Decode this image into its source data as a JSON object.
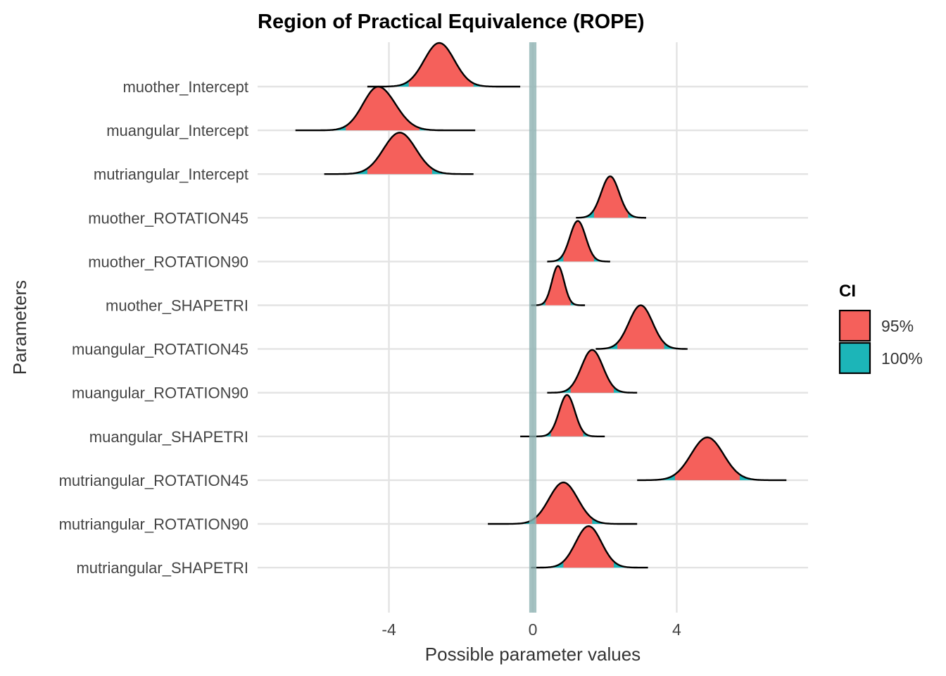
{
  "chart_data": {
    "type": "area",
    "title": "Region of Practical Equivalence (ROPE)",
    "xlabel": "Possible parameter values",
    "ylabel": "Parameters",
    "xlim": [
      -7.65,
      7.65
    ],
    "x_ticks": [
      {
        "value": -4,
        "label": "-4"
      },
      {
        "value": 0,
        "label": "0"
      },
      {
        "value": 4,
        "label": "4"
      }
    ],
    "rope": {
      "low": -0.1,
      "high": 0.1,
      "color": "#8fb3b3"
    },
    "legend": {
      "title": "CI",
      "position": "right",
      "entries": [
        {
          "label": "95%",
          "color": "#f5605b"
        },
        {
          "label": "100%",
          "color": "#1cb5b8"
        }
      ]
    },
    "grid": true,
    "parameters": [
      {
        "name": "muother_Intercept",
        "mode": -2.6,
        "sd_left": 0.42,
        "sd_right": 0.42,
        "range": [
          -4.6,
          -0.35
        ],
        "ci95": [
          -3.45,
          -1.65
        ],
        "peak": 1.0
      },
      {
        "name": "muangular_Intercept",
        "mode": -4.3,
        "sd_left": 0.42,
        "sd_right": 0.48,
        "range": [
          -6.6,
          -1.6
        ],
        "ci95": [
          -5.2,
          -3.15
        ],
        "peak": 1.0
      },
      {
        "name": "mutriangular_Intercept",
        "mode": -3.7,
        "sd_left": 0.45,
        "sd_right": 0.45,
        "range": [
          -5.8,
          -1.65
        ],
        "ci95": [
          -4.6,
          -2.8
        ],
        "peak": 0.95
      },
      {
        "name": "muother_ROTATION45",
        "mode": 2.15,
        "sd_left": 0.25,
        "sd_right": 0.25,
        "range": [
          1.2,
          3.15
        ],
        "ci95": [
          1.7,
          2.65
        ],
        "peak": 0.95
      },
      {
        "name": "muother_ROTATION90",
        "mode": 1.25,
        "sd_left": 0.22,
        "sd_right": 0.22,
        "range": [
          0.4,
          2.15
        ],
        "ci95": [
          0.85,
          1.7
        ],
        "peak": 0.93
      },
      {
        "name": "muother_SHAPETRI",
        "mode": 0.7,
        "sd_left": 0.17,
        "sd_right": 0.17,
        "range": [
          -0.05,
          1.45
        ],
        "ci95": [
          0.35,
          1.05
        ],
        "peak": 0.9
      },
      {
        "name": "muangular_ROTATION45",
        "mode": 3.0,
        "sd_left": 0.33,
        "sd_right": 0.33,
        "range": [
          1.75,
          4.3
        ],
        "ci95": [
          2.35,
          3.65
        ],
        "peak": 1.0
      },
      {
        "name": "muangular_ROTATION90",
        "mode": 1.65,
        "sd_left": 0.3,
        "sd_right": 0.3,
        "range": [
          0.4,
          2.9
        ],
        "ci95": [
          1.05,
          2.25
        ],
        "peak": 0.98
      },
      {
        "name": "muangular_SHAPETRI",
        "mode": 0.95,
        "sd_left": 0.22,
        "sd_right": 0.22,
        "range": [
          -0.35,
          2.0
        ],
        "ci95": [
          0.5,
          1.4
        ],
        "peak": 0.95
      },
      {
        "name": "mutriangular_ROTATION45",
        "mode": 4.85,
        "sd_left": 0.45,
        "sd_right": 0.45,
        "range": [
          2.9,
          7.05
        ],
        "ci95": [
          3.95,
          5.75
        ],
        "peak": 0.98
      },
      {
        "name": "mutriangular_ROTATION90",
        "mode": 0.85,
        "sd_left": 0.4,
        "sd_right": 0.4,
        "range": [
          -1.25,
          2.9
        ],
        "ci95": [
          0.05,
          1.65
        ],
        "peak": 0.95
      },
      {
        "name": "mutriangular_SHAPETRI",
        "mode": 1.55,
        "sd_left": 0.36,
        "sd_right": 0.36,
        "range": [
          -0.05,
          3.2
        ],
        "ci95": [
          0.85,
          2.25
        ],
        "peak": 0.95
      }
    ]
  }
}
